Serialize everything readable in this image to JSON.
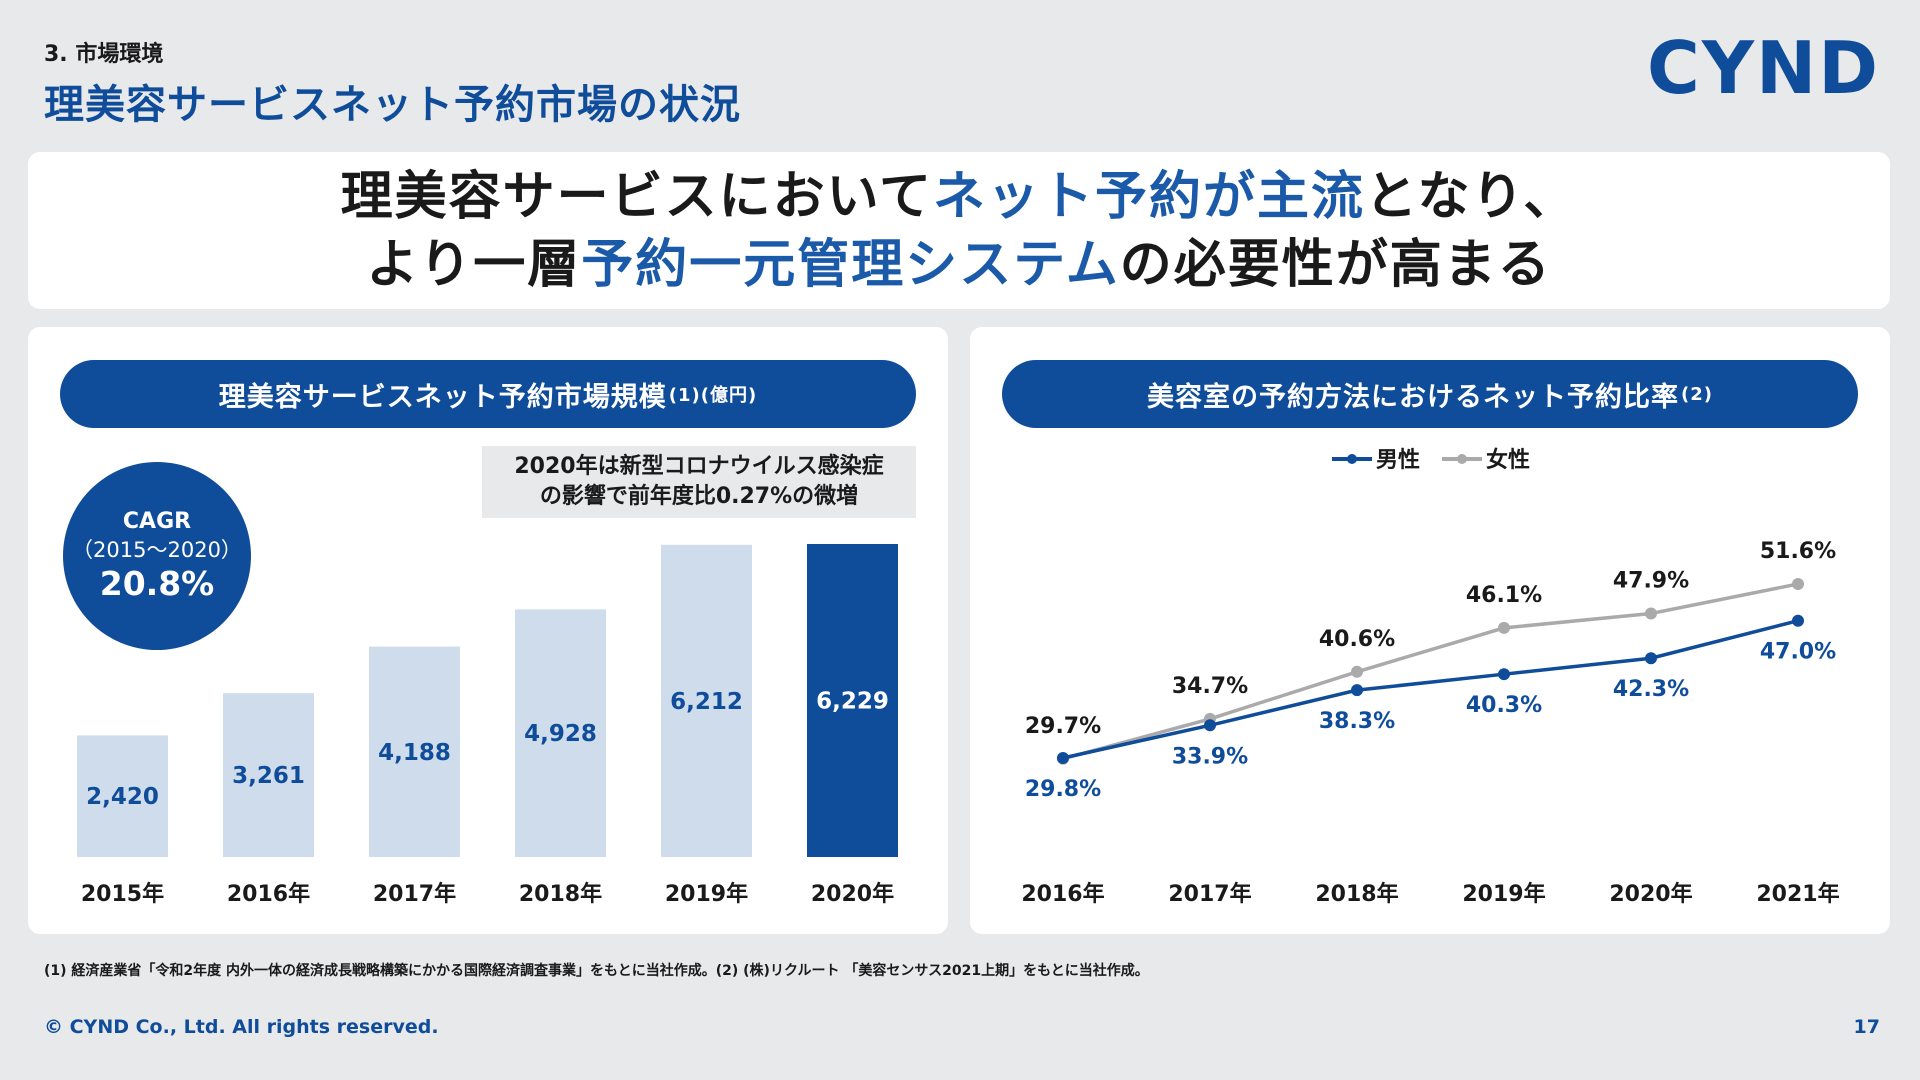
{
  "header": {
    "section": "3. 市場環境",
    "title": "理美容サービスネット予約市場の状況",
    "logo": "CYND"
  },
  "headline": {
    "line1": [
      "理美容サービスにおいて",
      "ネット予約が主流",
      "となり、"
    ],
    "line2": [
      "より一層",
      "予約一元管理システム",
      "の必要性が高まる"
    ]
  },
  "left_panel": {
    "title": "理美容サービスネット予約市場規模",
    "title_suffix": "(1)(億円)",
    "cagr_label": "CAGR",
    "cagr_period": "（2015～2020）",
    "cagr_value": "20.8%",
    "note_line1": "2020年は新型コロナウイルス感染症",
    "note_line2": "の影響で前年度比0.27%の微増"
  },
  "right_panel": {
    "title": "美容室の予約方法におけるネット予約比率",
    "title_suffix": "(2)"
  },
  "colors": {
    "brand": "#0f4c9a",
    "bar_light": "#cfdcec",
    "male_line": "#0f4c9a",
    "female_line": "#aaaaaa"
  },
  "chart_data": [
    {
      "type": "bar",
      "title": "理美容サービスネット予約市場規模(1)(億円)",
      "categories": [
        "2015年",
        "2016年",
        "2017年",
        "2018年",
        "2019年",
        "2020年"
      ],
      "values": [
        2420,
        3261,
        4188,
        4928,
        6212,
        6229
      ],
      "value_labels": [
        "2,420",
        "3,261",
        "4,188",
        "4,928",
        "6,212",
        "6,229"
      ],
      "highlight_index": 5,
      "ylim": [
        0,
        6229
      ]
    },
    {
      "type": "line",
      "title": "美容室の予約方法におけるネット予約比率(2)",
      "categories": [
        "2016年",
        "2017年",
        "2018年",
        "2019年",
        "2020年",
        "2021年"
      ],
      "series": [
        {
          "name": "男性",
          "values": [
            29.8,
            33.9,
            38.3,
            40.3,
            42.3,
            47.0
          ],
          "labels": [
            "29.8%",
            "33.9%",
            "38.3%",
            "40.3%",
            "42.3%",
            "47.0%"
          ]
        },
        {
          "name": "女性",
          "values": [
            29.7,
            34.7,
            40.6,
            46.1,
            47.9,
            51.6
          ],
          "labels": [
            "29.7%",
            "34.7%",
            "40.6%",
            "46.1%",
            "47.9%",
            "51.6%"
          ]
        }
      ],
      "ylim": [
        29.8,
        51.6
      ],
      "legend": "top-center"
    }
  ],
  "footer": {
    "footnote": "(1) 経済産業省「令和2年度 内外一体の経済成長戦略構築にかかる国際経済調査事業」をもとに当社作成。(2) (株)リクルート 「美容センサス2021上期」をもとに当社作成。",
    "copyright": "© CYND Co., Ltd. All rights reserved.",
    "page": "17"
  }
}
